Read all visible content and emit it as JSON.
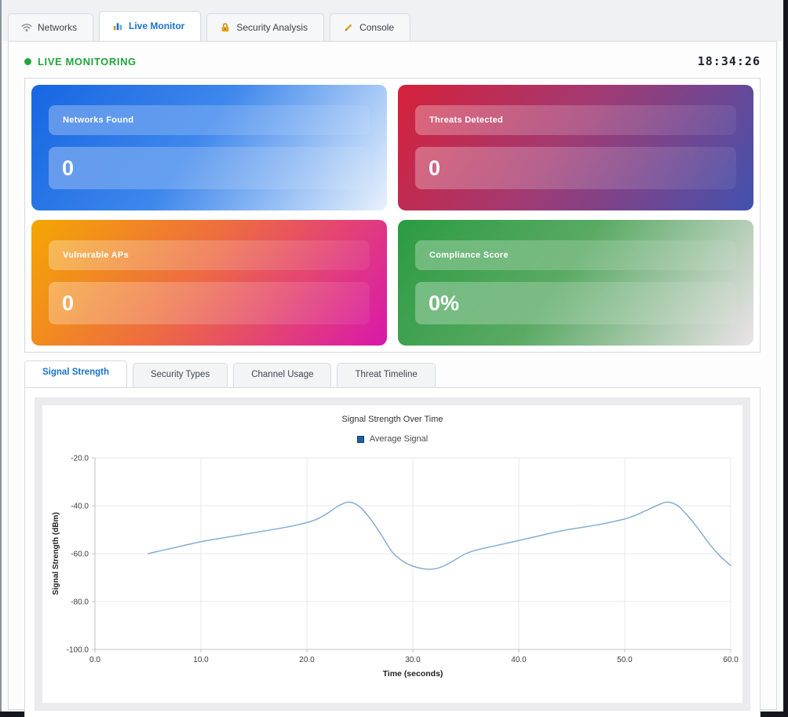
{
  "tabs": [
    {
      "label": "Networks",
      "icon": "wifi-icon",
      "active": false
    },
    {
      "label": "Live Monitor",
      "icon": "bar-chart-icon",
      "active": true
    },
    {
      "label": "Security Analysis",
      "icon": "lock-icon",
      "active": false
    },
    {
      "label": "Console",
      "icon": "pencil-icon",
      "active": false
    }
  ],
  "live_header": {
    "title": "LIVE MONITORING",
    "status_color": "#23a53c",
    "time": "18:34:26"
  },
  "stats": {
    "cards": [
      {
        "label": "Networks Found",
        "value": "0",
        "gradient": {
          "from": "#1766e2",
          "mid": "#3e87ec",
          "to": "#e8f2fd"
        }
      },
      {
        "label": "Threats Detected",
        "value": "0",
        "gradient": {
          "from": "#d6203a",
          "mid": "#a23a72",
          "to": "#4152af"
        }
      },
      {
        "label": "Vulnerable APs",
        "value": "0",
        "gradient": {
          "from": "#f5a602",
          "mid": "#ed6b42",
          "to": "#d818ab"
        }
      },
      {
        "label": "Compliance Score",
        "value": "0%",
        "gradient": {
          "from": "#2b9b41",
          "mid": "#5aaa64",
          "to": "#ece4e9"
        }
      }
    ]
  },
  "subtabs": [
    {
      "label": "Signal Strength",
      "active": true
    },
    {
      "label": "Security Types",
      "active": false
    },
    {
      "label": "Channel Usage",
      "active": false
    },
    {
      "label": "Threat Timeline",
      "active": false
    }
  ],
  "chart_data": {
    "type": "line",
    "title": "Signal Strength Over Time",
    "xlabel": "Time (seconds)",
    "ylabel": "Signal Strength (dBm)",
    "xlim": [
      0,
      60
    ],
    "ylim": [
      -100,
      -20
    ],
    "xticks": [
      0,
      10,
      20,
      30,
      40,
      50,
      60
    ],
    "yticks": [
      -20,
      -40,
      -60,
      -80,
      -100
    ],
    "grid": true,
    "legend_position": "top",
    "line_color": "#85aed3",
    "grid_color": "#e8e8ea",
    "axis_color": "#c2c3c7",
    "tick_text_color": "#3c3c3c",
    "series": [
      {
        "name": "Average Signal",
        "marker_fill": "#1f5ea3",
        "marker_border": "#123e6e",
        "points": [
          [
            5,
            -60
          ],
          [
            6,
            -59
          ],
          [
            8,
            -57
          ],
          [
            10,
            -55
          ],
          [
            12,
            -53.5
          ],
          [
            14,
            -52
          ],
          [
            16,
            -50.5
          ],
          [
            18,
            -49
          ],
          [
            20,
            -47
          ],
          [
            21,
            -45.5
          ],
          [
            22,
            -43
          ],
          [
            23,
            -40
          ],
          [
            24,
            -38.5
          ],
          [
            25,
            -40.5
          ],
          [
            26,
            -45.5
          ],
          [
            27,
            -52
          ],
          [
            28,
            -59
          ],
          [
            29,
            -63
          ],
          [
            30,
            -65.2
          ],
          [
            31,
            -66.3
          ],
          [
            32,
            -66.4
          ],
          [
            33,
            -65
          ],
          [
            34,
            -62.5
          ],
          [
            35,
            -60
          ],
          [
            36,
            -58.5
          ],
          [
            38,
            -56.5
          ],
          [
            40,
            -54.5
          ],
          [
            42,
            -52.5
          ],
          [
            44,
            -50.5
          ],
          [
            46,
            -49
          ],
          [
            48,
            -47.5
          ],
          [
            50,
            -45.5
          ],
          [
            51,
            -44
          ],
          [
            52,
            -42
          ],
          [
            53,
            -40
          ],
          [
            54,
            -38.5
          ],
          [
            55,
            -40
          ],
          [
            56,
            -44.5
          ],
          [
            57,
            -50
          ],
          [
            58,
            -56
          ],
          [
            59,
            -61
          ],
          [
            60,
            -65
          ]
        ]
      }
    ]
  }
}
